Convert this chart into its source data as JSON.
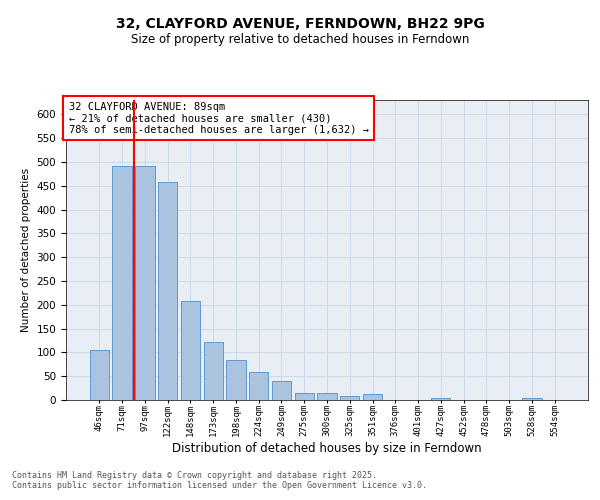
{
  "title": "32, CLAYFORD AVENUE, FERNDOWN, BH22 9PG",
  "subtitle": "Size of property relative to detached houses in Ferndown",
  "xlabel": "Distribution of detached houses by size in Ferndown",
  "ylabel": "Number of detached properties",
  "categories": [
    "46sqm",
    "71sqm",
    "97sqm",
    "122sqm",
    "148sqm",
    "173sqm",
    "198sqm",
    "224sqm",
    "249sqm",
    "275sqm",
    "300sqm",
    "325sqm",
    "351sqm",
    "376sqm",
    "401sqm",
    "427sqm",
    "452sqm",
    "478sqm",
    "503sqm",
    "528sqm",
    "554sqm"
  ],
  "values": [
    106,
    492,
    492,
    458,
    208,
    122,
    83,
    58,
    39,
    15,
    15,
    8,
    12,
    0,
    0,
    5,
    0,
    0,
    0,
    5,
    0
  ],
  "bar_color": "#aac4e0",
  "bar_edge_color": "#5b9bd5",
  "vline_x": 1.5,
  "vline_color": "red",
  "annotation_text": "32 CLAYFORD AVENUE: 89sqm\n← 21% of detached houses are smaller (430)\n78% of semi-detached houses are larger (1,632) →",
  "annotation_box_color": "white",
  "annotation_box_edge_color": "red",
  "annotation_fontsize": 7.5,
  "grid_color": "#c8d8e8",
  "background_color": "#e8eef4",
  "footer_text": "Contains HM Land Registry data © Crown copyright and database right 2025.\nContains public sector information licensed under the Open Government Licence v3.0.",
  "ylim": [
    0,
    630
  ],
  "yticks": [
    0,
    50,
    100,
    150,
    200,
    250,
    300,
    350,
    400,
    450,
    500,
    550,
    600
  ]
}
